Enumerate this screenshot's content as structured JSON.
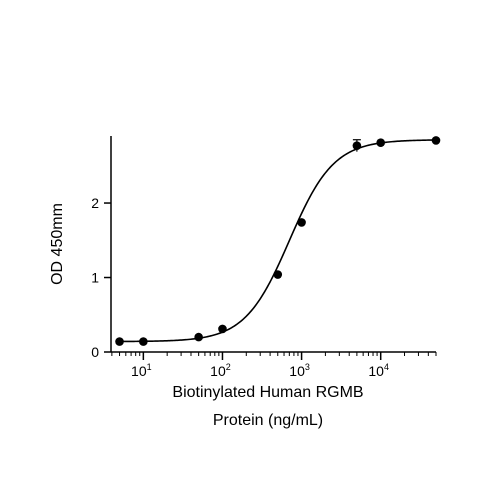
{
  "chart_data": {
    "type": "scatter",
    "xlabel_lines": [
      "Biotinylated Human RGMB",
      "Protein (ng/mL)"
    ],
    "ylabel": "OD 450mm",
    "x_scale": "log",
    "xlim": [
      3.9,
      50000
    ],
    "ylim": [
      0,
      2.9
    ],
    "x_ticks": [
      {
        "base": "10",
        "exp": "1",
        "value": 10
      },
      {
        "base": "10",
        "exp": "2",
        "value": 100
      },
      {
        "base": "10",
        "exp": "3",
        "value": 1000
      },
      {
        "base": "10",
        "exp": "4",
        "value": 10000
      }
    ],
    "y_ticks": [
      {
        "label": "0",
        "value": 0
      },
      {
        "label": "1",
        "value": 1
      },
      {
        "label": "2",
        "value": 2
      }
    ],
    "points": [
      {
        "x": 5,
        "y": 0.14
      },
      {
        "x": 10,
        "y": 0.14
      },
      {
        "x": 50,
        "y": 0.2
      },
      {
        "x": 100,
        "y": 0.31
      },
      {
        "x": 500,
        "y": 1.04
      },
      {
        "x": 1000,
        "y": 1.74
      },
      {
        "x": 5000,
        "y": 2.77,
        "err": 0.08
      },
      {
        "x": 10000,
        "y": 2.81
      },
      {
        "x": 50000,
        "y": 2.84
      }
    ],
    "fit": {
      "model": "4PL",
      "bottom": 0.14,
      "top": 2.85,
      "ec50": 700,
      "hill": 1.55
    },
    "grid": false,
    "legend": "none"
  }
}
